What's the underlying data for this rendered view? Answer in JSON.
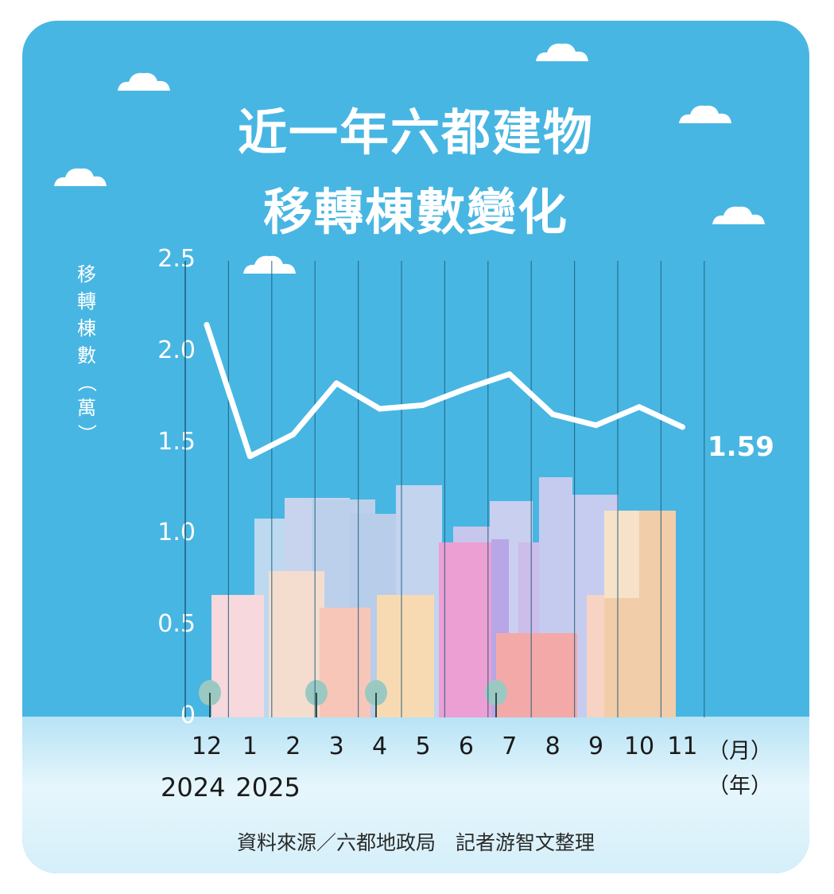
{
  "title_lines": [
    "近一年六都建物",
    "移轉棟數變化"
  ],
  "y_axis_label_chars": [
    "移",
    "轉",
    "棟",
    "數",
    "（",
    "萬",
    "）"
  ],
  "x_unit_month": "（月）",
  "x_unit_year": "（年）",
  "source_text": "資料來源／六都地政局　記者游智文整理",
  "end_value_label": "1.59",
  "colors": {
    "background": "#48b6e2",
    "line": "#ffffff",
    "gridline": "#1f5f7f",
    "tick_text": "#1a1a1a"
  },
  "chart_data": {
    "type": "line",
    "categories": [
      "12",
      "1",
      "2",
      "3",
      "4",
      "5",
      "6",
      "7",
      "8",
      "9",
      "10",
      "11"
    ],
    "year_labels": [
      {
        "category": "12",
        "label": "2024"
      },
      {
        "category": "1",
        "label": "2025"
      }
    ],
    "y_ticks": [
      "2.5",
      "2.0",
      "1.5",
      "1.0",
      "0.5",
      "0"
    ],
    "values": [
      2.15,
      1.43,
      1.55,
      1.83,
      1.69,
      1.71,
      1.8,
      1.88,
      1.66,
      1.6,
      1.7,
      1.59
    ],
    "ylim": [
      0,
      2.5
    ],
    "grid": "vertical",
    "title": "近一年六都建物移轉棟數變化",
    "ylabel": "移轉棟數（萬）",
    "xlabel": "（月）（年）"
  }
}
